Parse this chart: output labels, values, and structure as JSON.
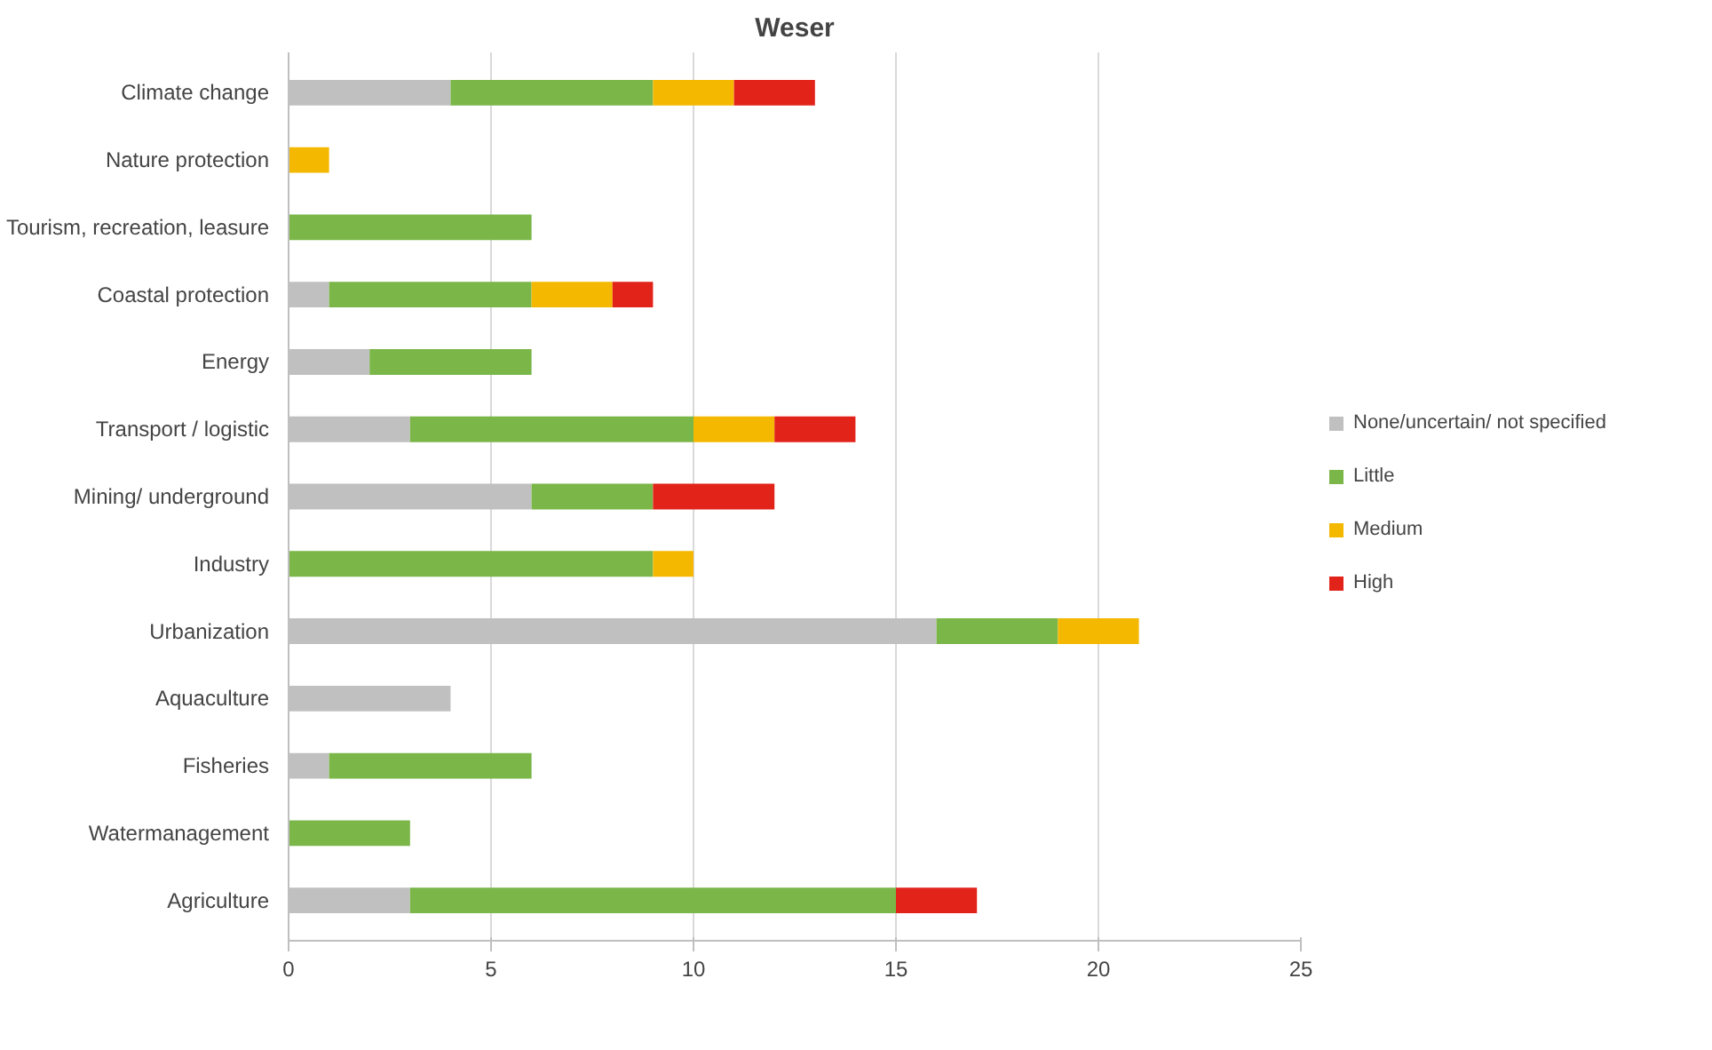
{
  "chart_data": {
    "type": "bar",
    "orientation": "horizontal",
    "stacked": true,
    "title": "Weser",
    "categories": [
      "Climate change",
      "Nature protection",
      "Tourism, recreation, leasure",
      "Coastal protection",
      "Energy",
      "Transport / logistic",
      "Mining/ underground",
      "Industry",
      "Urbanization",
      "Aquaculture",
      "Fisheries",
      "Watermanagement",
      "Agriculture"
    ],
    "series": [
      {
        "name": "None/uncertain/ not specified",
        "color": "#c0c0c0",
        "values": [
          4,
          null,
          null,
          1,
          2,
          3,
          6,
          null,
          16,
          4,
          1,
          null,
          3
        ]
      },
      {
        "name": "Little",
        "color": "#7ab648",
        "values": [
          5,
          null,
          6,
          5,
          4,
          7,
          3,
          9,
          3,
          null,
          5,
          3,
          12
        ]
      },
      {
        "name": "Medium",
        "color": "#f5b800",
        "values": [
          2,
          1,
          null,
          2,
          null,
          2,
          null,
          1,
          2,
          null,
          null,
          null,
          null
        ]
      },
      {
        "name": "High",
        "color": "#e2231a",
        "values": [
          2,
          null,
          null,
          1,
          null,
          2,
          3,
          null,
          null,
          null,
          null,
          null,
          2
        ]
      }
    ],
    "xlim": [
      0,
      25
    ],
    "xticks": [
      0,
      5,
      10,
      15,
      20,
      25
    ],
    "grid": "x",
    "legend": "right"
  }
}
